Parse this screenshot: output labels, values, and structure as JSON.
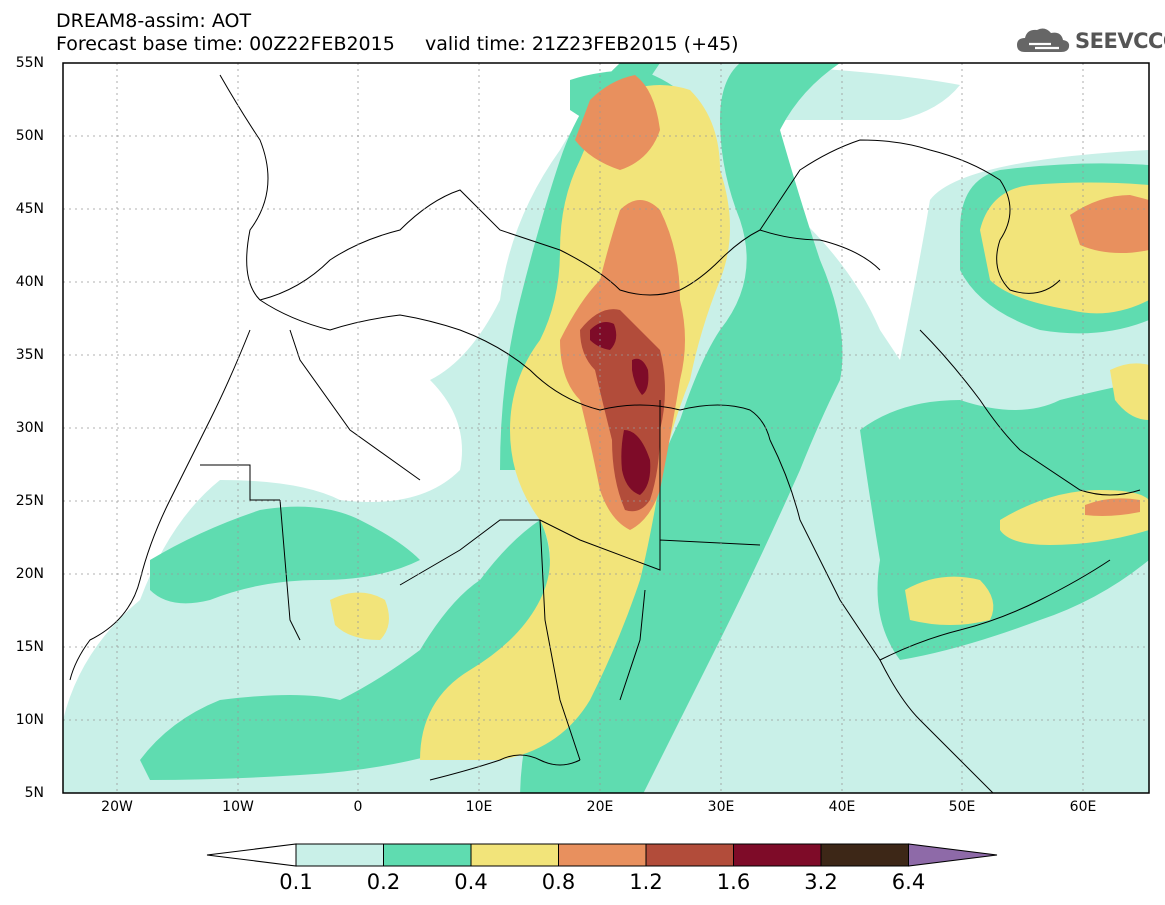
{
  "header": {
    "title_line1": "DREAM8-assim: AOT",
    "title_line2": "Forecast base time: 00Z22FEB2015     valid time: 21Z23FEB2015 (+45)",
    "brand_text": "SEEVCCC",
    "brand_icon": "cloud-icon"
  },
  "map": {
    "lat_labels": [
      "55N",
      "50N",
      "45N",
      "40N",
      "35N",
      "30N",
      "25N",
      "20N",
      "15N",
      "10N",
      "5N"
    ],
    "lon_labels": [
      "20W",
      "10W",
      "0",
      "10E",
      "20E",
      "30E",
      "40E",
      "50E",
      "60E"
    ]
  },
  "colorbar": {
    "labels": [
      "0.1",
      "0.2",
      "0.4",
      "0.8",
      "1.2",
      "1.6",
      "3.2",
      "6.4"
    ],
    "colors": [
      "#ffffff",
      "#c9f0e8",
      "#5fdcb0",
      "#f2e47a",
      "#e8905e",
      "#b24c3a",
      "#7e0b28",
      "#3d2717",
      "#8e6aa8"
    ]
  }
}
